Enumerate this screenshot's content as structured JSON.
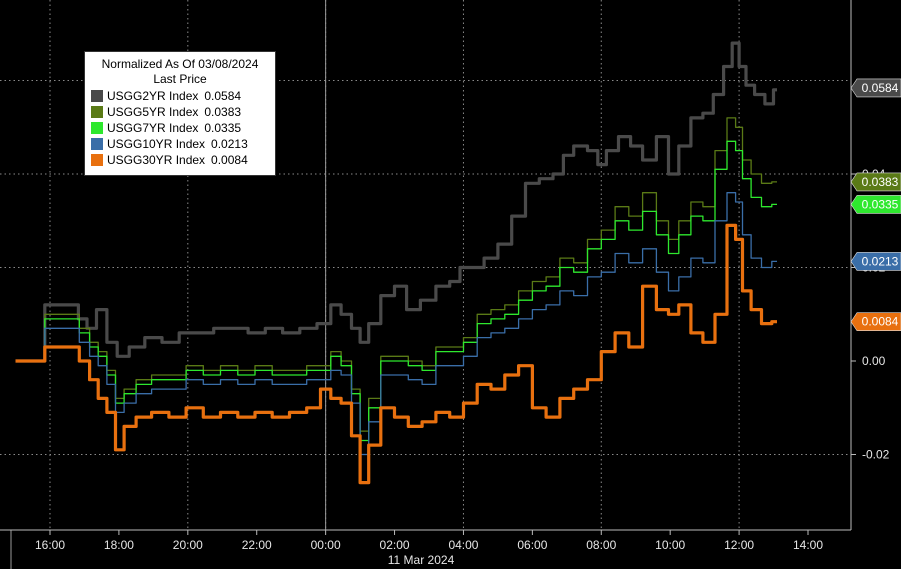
{
  "chart_data": {
    "type": "line",
    "x_tick_labels": [
      "16:00",
      "18:00",
      "20:00",
      "22:00",
      "00:00",
      "02:00",
      "04:00",
      "06:00",
      "08:00",
      "10:00",
      "12:00",
      "14:00"
    ],
    "x_axis_date": "11 Mar 2024",
    "y_tick_labels": [
      "0.04",
      "0.02",
      "0.00",
      "-0.02"
    ],
    "ylim": [
      -0.03,
      0.07
    ],
    "grid": true,
    "legend": {
      "title": "Normalized As Of 03/08/2024",
      "subtitle": "Last Price",
      "placement": "top-left"
    },
    "series": [
      {
        "name": "USGG2YR Index",
        "last": "0.0584",
        "color": "#4a4a4a",
        "points": [
          [
            15.0,
            0.0
          ],
          [
            16.7,
            0.012
          ],
          [
            16.95,
            0.009
          ],
          [
            17.2,
            0.007
          ],
          [
            17.5,
            0.011
          ],
          [
            17.8,
            0.004
          ],
          [
            18.1,
            0.001
          ],
          [
            18.5,
            0.003
          ],
          [
            19.0,
            0.005
          ],
          [
            19.5,
            0.004
          ],
          [
            20.0,
            0.006
          ],
          [
            20.5,
            0.006
          ],
          [
            21.0,
            0.007
          ],
          [
            21.5,
            0.007
          ],
          [
            22.0,
            0.006
          ],
          [
            22.5,
            0.007
          ],
          [
            23.0,
            0.006
          ],
          [
            23.5,
            0.007
          ],
          [
            24.0,
            0.008
          ],
          [
            24.3,
            0.012
          ],
          [
            24.6,
            0.01
          ],
          [
            24.9,
            0.007
          ],
          [
            25.1,
            0.004
          ],
          [
            25.4,
            0.008
          ],
          [
            25.8,
            0.014
          ],
          [
            26.2,
            0.016
          ],
          [
            26.5,
            0.011
          ],
          [
            27.0,
            0.013
          ],
          [
            27.4,
            0.016
          ],
          [
            27.8,
            0.017
          ],
          [
            28.0,
            0.02
          ],
          [
            28.4,
            0.02
          ],
          [
            28.8,
            0.022
          ],
          [
            29.2,
            0.025
          ],
          [
            29.6,
            0.031
          ],
          [
            30.0,
            0.038
          ],
          [
            30.4,
            0.039
          ],
          [
            30.8,
            0.04
          ],
          [
            31.0,
            0.044
          ],
          [
            31.4,
            0.046
          ],
          [
            31.8,
            0.045
          ],
          [
            32.0,
            0.042
          ],
          [
            32.3,
            0.045
          ],
          [
            32.7,
            0.048
          ],
          [
            33.0,
            0.046
          ],
          [
            33.4,
            0.043
          ],
          [
            33.8,
            0.048
          ],
          [
            34.1,
            0.04
          ],
          [
            34.4,
            0.046
          ],
          [
            34.8,
            0.052
          ],
          [
            35.1,
            0.053
          ],
          [
            35.4,
            0.057
          ],
          [
            35.7,
            0.063
          ],
          [
            35.9,
            0.068
          ],
          [
            36.1,
            0.063
          ],
          [
            36.3,
            0.059
          ],
          [
            36.6,
            0.057
          ],
          [
            36.9,
            0.055
          ],
          [
            37.1,
            0.058
          ]
        ]
      },
      {
        "name": "USGG5YR Index",
        "last": "0.0383",
        "color": "#5a7a16",
        "points": [
          [
            15.0,
            0.0
          ],
          [
            16.7,
            0.01
          ],
          [
            17.0,
            0.007
          ],
          [
            17.3,
            0.004
          ],
          [
            17.5,
            0.002
          ],
          [
            17.8,
            -0.002
          ],
          [
            18.0,
            -0.008
          ],
          [
            18.3,
            -0.006
          ],
          [
            18.7,
            -0.004
          ],
          [
            19.2,
            -0.003
          ],
          [
            19.7,
            -0.003
          ],
          [
            20.2,
            -0.001
          ],
          [
            20.7,
            -0.002
          ],
          [
            21.2,
            -0.001
          ],
          [
            21.7,
            -0.002
          ],
          [
            22.2,
            -0.001
          ],
          [
            22.7,
            -0.002
          ],
          [
            23.2,
            -0.002
          ],
          [
            23.7,
            -0.001
          ],
          [
            24.0,
            -0.001
          ],
          [
            24.3,
            0.002
          ],
          [
            24.6,
            0.0
          ],
          [
            24.9,
            -0.006
          ],
          [
            25.1,
            -0.015
          ],
          [
            25.4,
            -0.008
          ],
          [
            25.8,
            0.001
          ],
          [
            26.2,
            0.001
          ],
          [
            26.6,
            0.0
          ],
          [
            27.0,
            -0.001
          ],
          [
            27.4,
            0.003
          ],
          [
            27.8,
            0.003
          ],
          [
            28.2,
            0.005
          ],
          [
            28.6,
            0.01
          ],
          [
            29.0,
            0.011
          ],
          [
            29.4,
            0.012
          ],
          [
            29.8,
            0.015
          ],
          [
            30.2,
            0.017
          ],
          [
            30.6,
            0.018
          ],
          [
            31.0,
            0.022
          ],
          [
            31.4,
            0.021
          ],
          [
            31.8,
            0.026
          ],
          [
            32.2,
            0.028
          ],
          [
            32.6,
            0.033
          ],
          [
            33.0,
            0.031
          ],
          [
            33.4,
            0.036
          ],
          [
            33.8,
            0.03
          ],
          [
            34.1,
            0.026
          ],
          [
            34.4,
            0.03
          ],
          [
            34.8,
            0.034
          ],
          [
            35.1,
            0.033
          ],
          [
            35.5,
            0.045
          ],
          [
            35.8,
            0.052
          ],
          [
            36.0,
            0.05
          ],
          [
            36.2,
            0.043
          ],
          [
            36.5,
            0.04
          ],
          [
            36.8,
            0.038
          ],
          [
            37.1,
            0.0383
          ]
        ]
      },
      {
        "name": "USGG7YR Index",
        "last": "0.0335",
        "color": "#2ee82e",
        "points": [
          [
            15.0,
            0.0
          ],
          [
            16.7,
            0.009
          ],
          [
            17.0,
            0.006
          ],
          [
            17.3,
            0.003
          ],
          [
            17.5,
            0.001
          ],
          [
            17.8,
            -0.003
          ],
          [
            18.0,
            -0.009
          ],
          [
            18.3,
            -0.007
          ],
          [
            18.7,
            -0.005
          ],
          [
            19.2,
            -0.004
          ],
          [
            19.7,
            -0.004
          ],
          [
            20.2,
            -0.002
          ],
          [
            20.7,
            -0.003
          ],
          [
            21.2,
            -0.002
          ],
          [
            21.7,
            -0.003
          ],
          [
            22.2,
            -0.002
          ],
          [
            22.7,
            -0.003
          ],
          [
            23.2,
            -0.003
          ],
          [
            23.7,
            -0.002
          ],
          [
            24.0,
            -0.002
          ],
          [
            24.3,
            0.001
          ],
          [
            24.6,
            -0.001
          ],
          [
            24.9,
            -0.007
          ],
          [
            25.1,
            -0.017
          ],
          [
            25.4,
            -0.01
          ],
          [
            25.8,
            0.0
          ],
          [
            26.2,
            0.0
          ],
          [
            26.6,
            -0.001
          ],
          [
            27.0,
            -0.002
          ],
          [
            27.4,
            0.002
          ],
          [
            27.8,
            0.002
          ],
          [
            28.2,
            0.004
          ],
          [
            28.6,
            0.008
          ],
          [
            29.0,
            0.009
          ],
          [
            29.4,
            0.01
          ],
          [
            29.8,
            0.013
          ],
          [
            30.2,
            0.015
          ],
          [
            30.6,
            0.016
          ],
          [
            31.0,
            0.02
          ],
          [
            31.4,
            0.019
          ],
          [
            31.8,
            0.024
          ],
          [
            32.2,
            0.026
          ],
          [
            32.6,
            0.03
          ],
          [
            33.0,
            0.028
          ],
          [
            33.4,
            0.032
          ],
          [
            33.8,
            0.027
          ],
          [
            34.1,
            0.023
          ],
          [
            34.4,
            0.027
          ],
          [
            34.8,
            0.031
          ],
          [
            35.1,
            0.03
          ],
          [
            35.5,
            0.041
          ],
          [
            35.8,
            0.047
          ],
          [
            36.0,
            0.045
          ],
          [
            36.2,
            0.039
          ],
          [
            36.5,
            0.035
          ],
          [
            36.8,
            0.033
          ],
          [
            37.1,
            0.0335
          ]
        ]
      },
      {
        "name": "USGG10YR Index",
        "last": "0.0213",
        "color": "#3a6ea8",
        "points": [
          [
            15.0,
            0.0
          ],
          [
            16.7,
            0.007
          ],
          [
            17.0,
            0.004
          ],
          [
            17.3,
            0.001
          ],
          [
            17.5,
            -0.001
          ],
          [
            17.8,
            -0.005
          ],
          [
            18.0,
            -0.011
          ],
          [
            18.3,
            -0.009
          ],
          [
            18.7,
            -0.007
          ],
          [
            19.2,
            -0.006
          ],
          [
            19.7,
            -0.006
          ],
          [
            20.2,
            -0.004
          ],
          [
            20.7,
            -0.005
          ],
          [
            21.2,
            -0.004
          ],
          [
            21.7,
            -0.005
          ],
          [
            22.2,
            -0.004
          ],
          [
            22.7,
            -0.005
          ],
          [
            23.2,
            -0.005
          ],
          [
            23.7,
            -0.004
          ],
          [
            24.0,
            -0.004
          ],
          [
            24.3,
            -0.002
          ],
          [
            24.6,
            -0.003
          ],
          [
            24.9,
            -0.009
          ],
          [
            25.1,
            -0.02
          ],
          [
            25.4,
            -0.013
          ],
          [
            25.8,
            -0.003
          ],
          [
            26.2,
            -0.003
          ],
          [
            26.6,
            -0.004
          ],
          [
            27.0,
            -0.005
          ],
          [
            27.4,
            -0.001
          ],
          [
            27.8,
            -0.001
          ],
          [
            28.2,
            0.001
          ],
          [
            28.6,
            0.005
          ],
          [
            29.0,
            0.006
          ],
          [
            29.4,
            0.007
          ],
          [
            29.8,
            0.009
          ],
          [
            30.2,
            0.011
          ],
          [
            30.6,
            0.012
          ],
          [
            31.0,
            0.015
          ],
          [
            31.4,
            0.014
          ],
          [
            31.8,
            0.018
          ],
          [
            32.2,
            0.019
          ],
          [
            32.6,
            0.023
          ],
          [
            33.0,
            0.021
          ],
          [
            33.4,
            0.024
          ],
          [
            33.8,
            0.019
          ],
          [
            34.1,
            0.015
          ],
          [
            34.4,
            0.018
          ],
          [
            34.8,
            0.022
          ],
          [
            35.1,
            0.021
          ],
          [
            35.5,
            0.03
          ],
          [
            35.8,
            0.036
          ],
          [
            36.0,
            0.034
          ],
          [
            36.2,
            0.027
          ],
          [
            36.5,
            0.022
          ],
          [
            36.8,
            0.02
          ],
          [
            37.1,
            0.0213
          ]
        ]
      },
      {
        "name": "USGG30YR Index",
        "last": "0.0084",
        "color": "#e8700f",
        "points": [
          [
            15.0,
            0.0
          ],
          [
            16.7,
            0.003
          ],
          [
            17.0,
            0.0
          ],
          [
            17.3,
            -0.004
          ],
          [
            17.5,
            -0.008
          ],
          [
            17.8,
            -0.011
          ],
          [
            18.0,
            -0.019
          ],
          [
            18.3,
            -0.014
          ],
          [
            18.7,
            -0.012
          ],
          [
            19.2,
            -0.011
          ],
          [
            19.7,
            -0.012
          ],
          [
            20.2,
            -0.01
          ],
          [
            20.7,
            -0.012
          ],
          [
            21.2,
            -0.011
          ],
          [
            21.7,
            -0.012
          ],
          [
            22.2,
            -0.011
          ],
          [
            22.7,
            -0.012
          ],
          [
            23.2,
            -0.011
          ],
          [
            23.7,
            -0.01
          ],
          [
            24.0,
            -0.006
          ],
          [
            24.3,
            -0.008
          ],
          [
            24.6,
            -0.009
          ],
          [
            24.9,
            -0.016
          ],
          [
            25.1,
            -0.026
          ],
          [
            25.4,
            -0.018
          ],
          [
            25.8,
            -0.01
          ],
          [
            26.2,
            -0.012
          ],
          [
            26.6,
            -0.014
          ],
          [
            27.0,
            -0.013
          ],
          [
            27.4,
            -0.011
          ],
          [
            27.8,
            -0.012
          ],
          [
            28.2,
            -0.009
          ],
          [
            28.6,
            -0.005
          ],
          [
            29.0,
            -0.006
          ],
          [
            29.4,
            -0.003
          ],
          [
            29.8,
            -0.001
          ],
          [
            30.2,
            -0.01
          ],
          [
            30.6,
            -0.012
          ],
          [
            31.0,
            -0.008
          ],
          [
            31.4,
            -0.006
          ],
          [
            31.8,
            -0.004
          ],
          [
            32.2,
            0.002
          ],
          [
            32.6,
            0.006
          ],
          [
            33.0,
            0.003
          ],
          [
            33.4,
            0.016
          ],
          [
            33.8,
            0.011
          ],
          [
            34.1,
            0.01
          ],
          [
            34.4,
            0.012
          ],
          [
            34.8,
            0.006
          ],
          [
            35.1,
            0.004
          ],
          [
            35.5,
            0.01
          ],
          [
            35.8,
            0.029
          ],
          [
            36.0,
            0.026
          ],
          [
            36.2,
            0.015
          ],
          [
            36.5,
            0.011
          ],
          [
            36.8,
            0.008
          ],
          [
            37.1,
            0.0084
          ]
        ]
      }
    ]
  }
}
